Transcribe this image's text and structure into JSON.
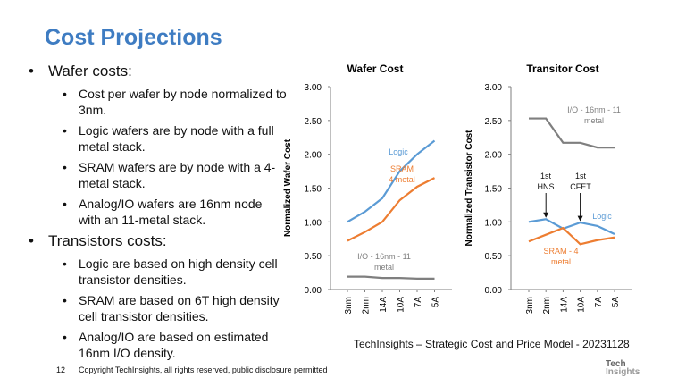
{
  "title": "Cost Projections",
  "bullets": [
    {
      "label": "Wafer costs:",
      "items": [
        "Cost per wafer by node normalized to 3nm.",
        "Logic wafers are by node with a full metal stack.",
        "SRAM wafers are by node with a 4-metal stack.",
        "Analog/IO wafers are 16nm node with an 11-metal stack."
      ]
    },
    {
      "label": "Transistors costs:",
      "items": [
        "Logic are based on high density cell transistor densities.",
        "SRAM are based on 6T high density cell transistor densities.",
        "Analog/IO are based on estimated 16nm I/O density."
      ]
    }
  ],
  "source": "TechInsights – Strategic Cost and Price Model - 20231128",
  "page_number": "12",
  "copyright": "Copyright TechInsights, all rights reserved, public disclosure permitted",
  "logo": {
    "line1": "Tech",
    "line2": "Insights"
  },
  "colors": {
    "title": "#3e7cc2",
    "logic": "#5b9bd5",
    "sram": "#ed7d31",
    "io": "#7f7f7f"
  },
  "chart_data": [
    {
      "type": "line",
      "title": "Wafer Cost",
      "ylabel": "Normalized Wafer Cost",
      "xlabel": "",
      "ylim": [
        0,
        3
      ],
      "yticks": [
        "0.00",
        "0.50",
        "1.00",
        "1.50",
        "2.00",
        "2.50",
        "3.00"
      ],
      "categories": [
        "3nm",
        "2nm",
        "14A",
        "10A",
        "7A",
        "5A"
      ],
      "series": [
        {
          "name": "Logic",
          "color": "#5b9bd5",
          "values": [
            1.0,
            1.15,
            1.35,
            1.75,
            2.0,
            2.2
          ]
        },
        {
          "name": "SRAM 4 metal",
          "color": "#ed7d31",
          "values": [
            0.72,
            0.85,
            1.0,
            1.32,
            1.52,
            1.65
          ]
        },
        {
          "name": "I/O - 16nm - 11 metal",
          "color": "#7f7f7f",
          "values": [
            0.19,
            0.19,
            0.17,
            0.17,
            0.16,
            0.16
          ]
        }
      ],
      "annotations": [
        {
          "text": [
            "Logic"
          ],
          "color": "#5b9bd5"
        },
        {
          "text": [
            "SRAM",
            "4 metal"
          ],
          "color": "#ed7d31"
        },
        {
          "text": [
            "I/O - 16nm - 11",
            "metal"
          ],
          "color": "#7f7f7f"
        }
      ],
      "grid": false
    },
    {
      "type": "line",
      "title": "Transitor Cost",
      "ylabel": "Normalized Transistor Cost",
      "xlabel": "",
      "ylim": [
        0,
        3
      ],
      "yticks": [
        "0.00",
        "0.50",
        "1.00",
        "1.50",
        "2.00",
        "2.50",
        "3.00"
      ],
      "categories": [
        "3nm",
        "2nm",
        "14A",
        "10A",
        "7A",
        "5A"
      ],
      "series": [
        {
          "name": "I/O - 16nm - 11 metal",
          "color": "#7f7f7f",
          "values": [
            2.53,
            2.53,
            2.17,
            2.17,
            2.1,
            2.1
          ]
        },
        {
          "name": "Logic",
          "color": "#5b9bd5",
          "values": [
            1.0,
            1.04,
            0.9,
            0.99,
            0.94,
            0.82
          ]
        },
        {
          "name": "SRAM - 4 metal",
          "color": "#ed7d31",
          "values": [
            0.71,
            0.81,
            0.91,
            0.67,
            0.73,
            0.77
          ]
        }
      ],
      "annotations": [
        {
          "text": [
            "I/O - 16nm - 11",
            "metal"
          ],
          "color": "#7f7f7f"
        },
        {
          "text": [
            "Logic"
          ],
          "color": "#5b9bd5"
        },
        {
          "text": [
            "SRAM - 4",
            "metal"
          ],
          "color": "#ed7d31"
        },
        {
          "text": [
            "1st",
            "HNS"
          ],
          "color": "#111111",
          "arrow_to": {
            "category": "2nm",
            "value": 1.06
          }
        },
        {
          "text": [
            "1st",
            "CFET"
          ],
          "color": "#111111",
          "arrow_to": {
            "category": "10A",
            "value": 1.01
          }
        }
      ],
      "grid": false
    }
  ]
}
